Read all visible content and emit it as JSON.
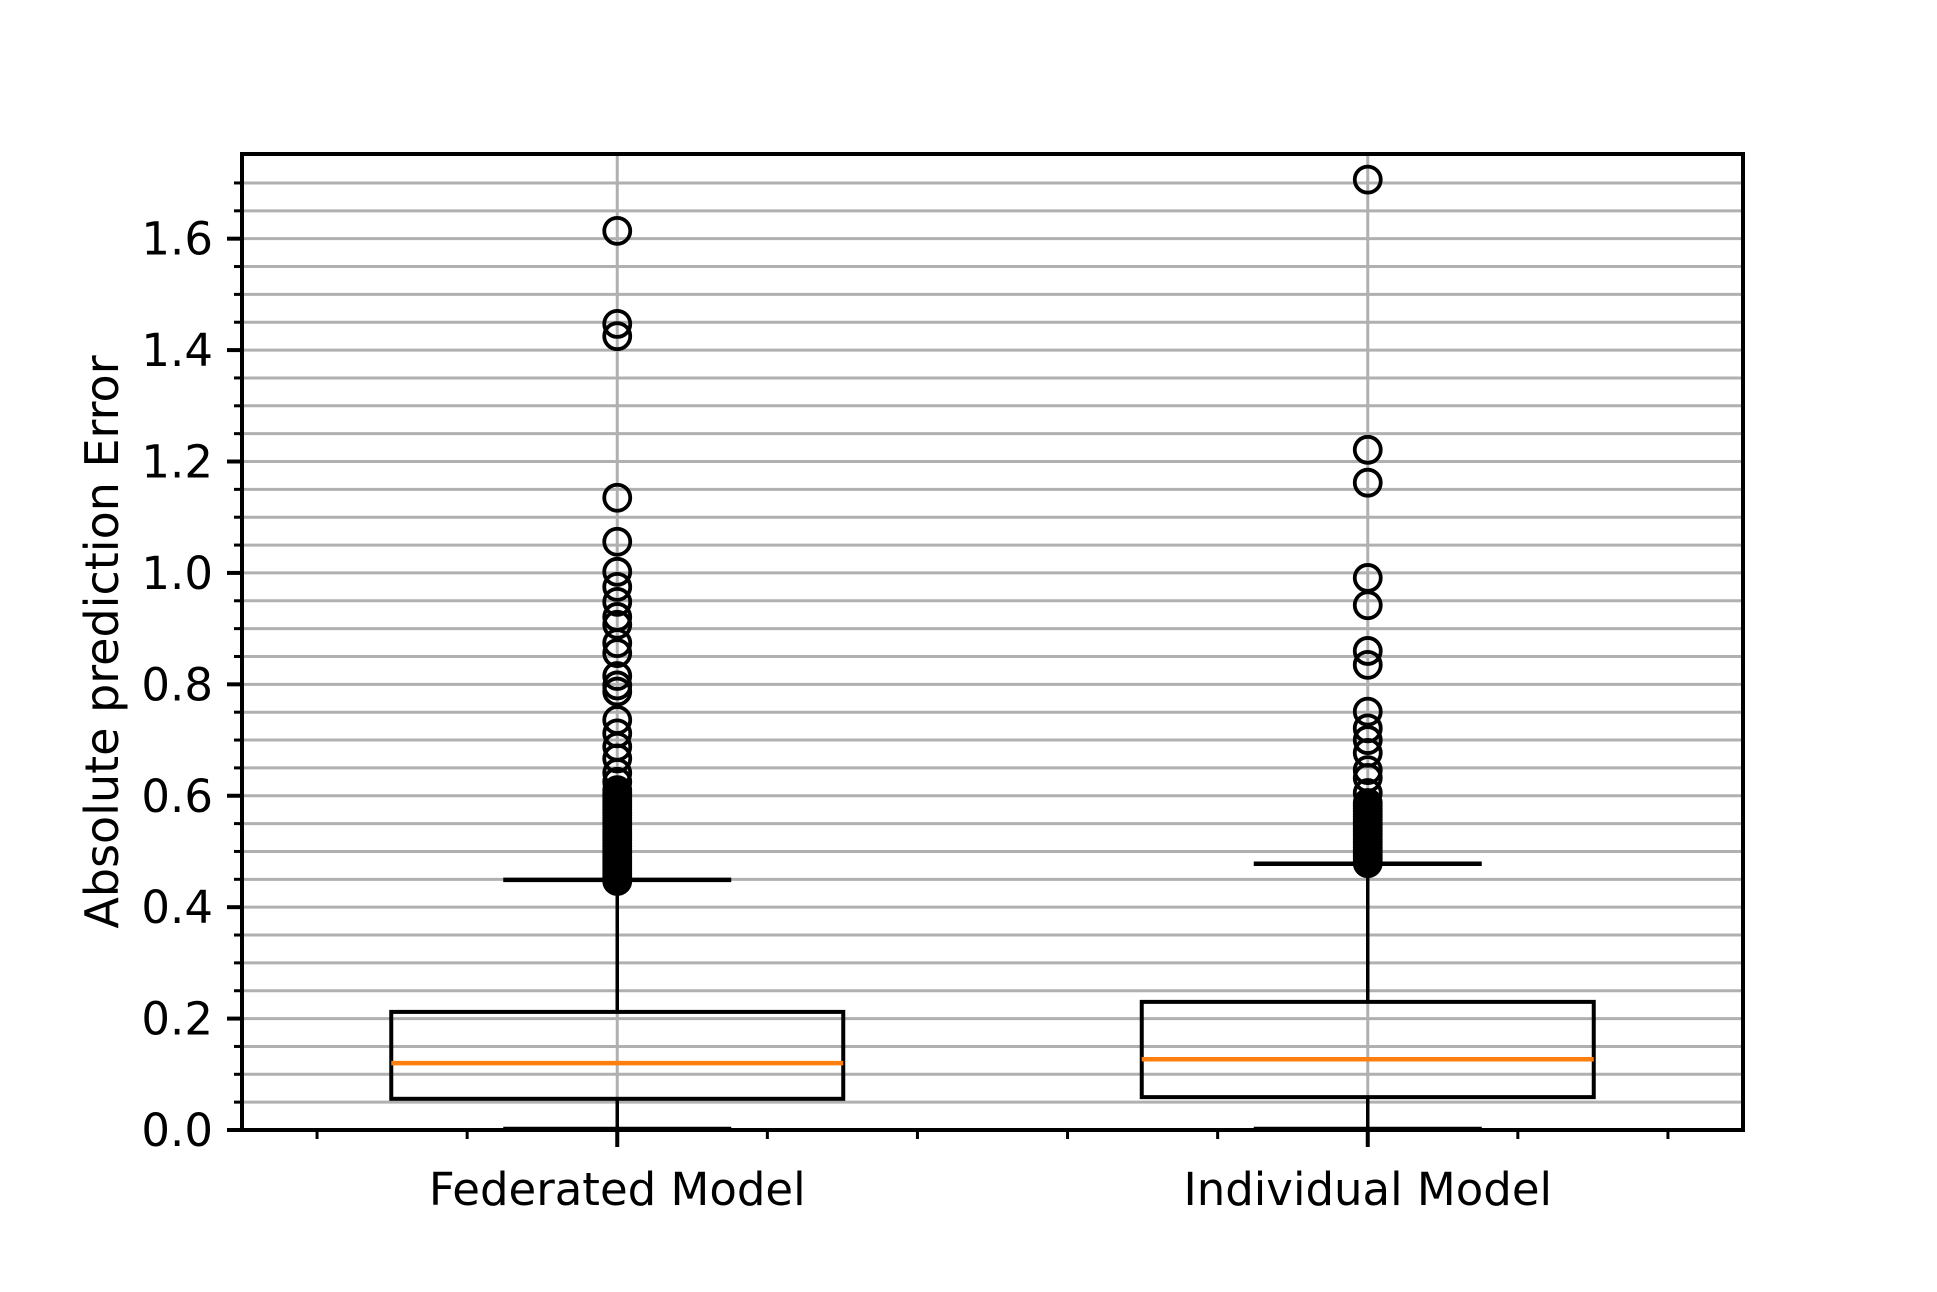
{
  "figure": {
    "background": "#ffffff"
  },
  "colors": {
    "box_line": "#000000",
    "median_line": "#ff7f0e",
    "grid_line": "#b0b0b0",
    "spine": "#000000",
    "text": "#000000",
    "flier_edge": "#000000"
  },
  "chart_data": {
    "type": "boxplot",
    "title": "",
    "xlabel": "",
    "ylabel": "Absolute prediction Error",
    "categories": [
      "Federated Model",
      "Individual Model"
    ],
    "ylim": [
      0,
      1.752
    ],
    "y_major_ticks": [
      0.0,
      0.2,
      0.4,
      0.6,
      0.8,
      1.0,
      1.2,
      1.4,
      1.6
    ],
    "y_tick_labels": [
      "0.0",
      "0.2",
      "0.4",
      "0.6",
      "0.8",
      "1.0",
      "1.2",
      "1.4",
      "1.6"
    ],
    "y_minor_step": 0.05,
    "x_major_ticks": [
      1,
      2
    ],
    "x_minor_ticks": [
      0.6,
      0.8,
      1.2,
      1.4,
      1.6,
      1.8,
      2.2,
      2.4
    ],
    "grid": {
      "horizontal": "every 0.05",
      "vertical": "at category centers",
      "on": true
    },
    "legend": {
      "visible": false
    },
    "series": [
      {
        "name": "Federated Model",
        "position": 1,
        "q1": 0.056,
        "median": 0.12,
        "q3": 0.212,
        "whisker_low": 0.0,
        "whisker_high": 0.449,
        "outliers": [
          1.614,
          1.447,
          1.425,
          1.135,
          1.056,
          1.002,
          0.975,
          0.948,
          0.921,
          0.907,
          0.874,
          0.856,
          0.815,
          0.798,
          0.787,
          0.736,
          0.712,
          0.688,
          0.667,
          0.641,
          0.625,
          0.61,
          0.605,
          0.6,
          0.595,
          0.59,
          0.585,
          0.58,
          0.575,
          0.57,
          0.565,
          0.56,
          0.555,
          0.55,
          0.545,
          0.54,
          0.535,
          0.53,
          0.525,
          0.52,
          0.515,
          0.51,
          0.505,
          0.5,
          0.495,
          0.49,
          0.485,
          0.48,
          0.475,
          0.47,
          0.465,
          0.46,
          0.455,
          0.451,
          0.447
        ]
      },
      {
        "name": "Individual Model",
        "position": 2,
        "q1": 0.059,
        "median": 0.127,
        "q3": 0.23,
        "whisker_low": 0.0,
        "whisker_high": 0.478,
        "outliers": [
          1.706,
          1.221,
          1.162,
          0.991,
          0.942,
          0.86,
          0.835,
          0.751,
          0.721,
          0.7,
          0.677,
          0.646,
          0.632,
          0.605,
          0.587,
          0.582,
          0.577,
          0.572,
          0.567,
          0.562,
          0.557,
          0.552,
          0.547,
          0.542,
          0.537,
          0.532,
          0.527,
          0.522,
          0.517,
          0.512,
          0.507,
          0.502,
          0.497,
          0.492,
          0.487,
          0.482,
          0.479
        ]
      }
    ]
  }
}
